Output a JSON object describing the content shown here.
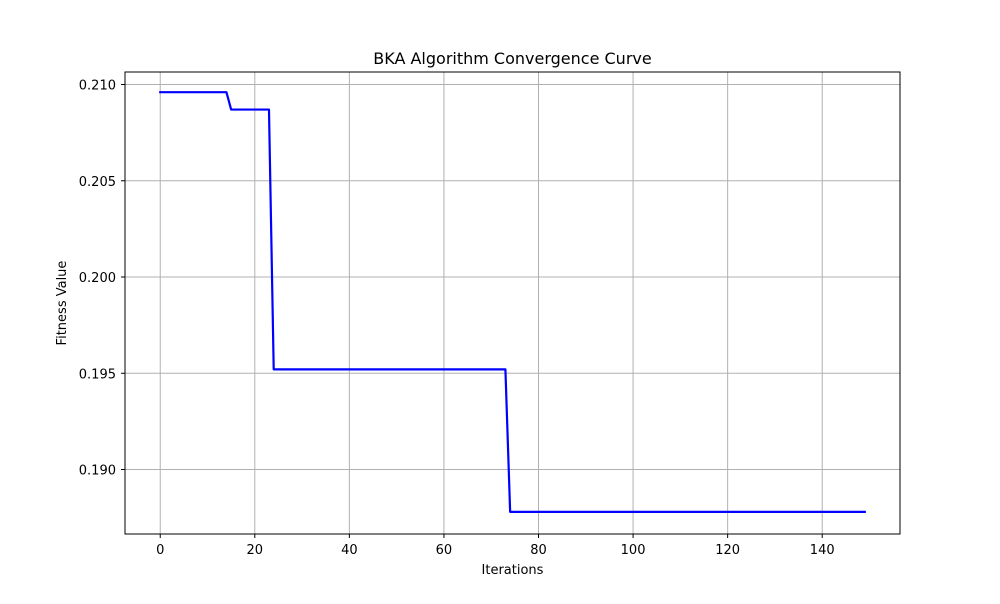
{
  "chart_data": {
    "type": "line",
    "title": "BKA Algorithm Convergence Curve",
    "xlabel": "Iterations",
    "ylabel": "Fitness Value",
    "xlim": [
      -7.45,
      156.45
    ],
    "ylim": [
      0.18665,
      0.21065
    ],
    "xticks": [
      0,
      20,
      40,
      60,
      80,
      100,
      120,
      140
    ],
    "xtick_labels": [
      "0",
      "20",
      "40",
      "60",
      "80",
      "100",
      "120",
      "140"
    ],
    "yticks": [
      0.19,
      0.195,
      0.2,
      0.205,
      0.21
    ],
    "ytick_labels": [
      "0.190",
      "0.195",
      "0.200",
      "0.205",
      "0.210"
    ],
    "grid": true,
    "series": [
      {
        "color": "#0000ff",
        "x": [
          0,
          14,
          15,
          23,
          24,
          73,
          74,
          149
        ],
        "y": [
          0.2096,
          0.2096,
          0.2087,
          0.2087,
          0.1952,
          0.1952,
          0.1878,
          0.1878
        ]
      }
    ]
  }
}
